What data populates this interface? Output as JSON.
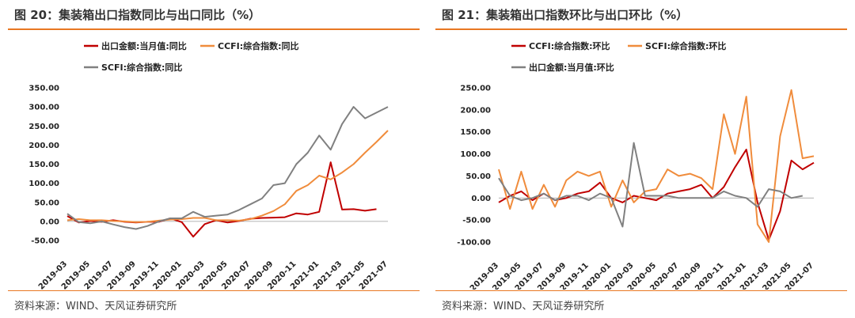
{
  "left": {
    "title": "图 20：集装箱出口指数同比与出口同比（%）",
    "source": "资料来源：WIND、天风证券研究所"
  },
  "right": {
    "title": "图 21：集装箱出口指数环比与出口环比（%）",
    "source": "资料来源：WIND、天风证券研究所"
  },
  "colors": {
    "accent": "#e87722",
    "red": "#c00000",
    "orange": "#f08c3c",
    "gray": "#808080"
  },
  "chart_data": [
    {
      "type": "line",
      "title": "集装箱出口指数同比与出口同比（%）",
      "x_ticks": [
        "2019-03",
        "2019-05",
        "2019-07",
        "2019-09",
        "2019-11",
        "2020-01",
        "2020-03",
        "2020-05",
        "2020-07",
        "2020-09",
        "2020-11",
        "2021-01",
        "2021-03",
        "2021-05",
        "2021-07"
      ],
      "x_range": [
        "2019-03",
        "2021-07"
      ],
      "y_ticks": [
        "350.00",
        "300.00",
        "250.00",
        "200.00",
        "150.00",
        "100.00",
        "50.00",
        "0.00",
        "-50.00"
      ],
      "ylim": [
        -50,
        350
      ],
      "grid": false,
      "legend_position": "top",
      "series": [
        {
          "name": "出口金额:当月值:同比",
          "color": "#c00000",
          "x": [
            "2019-03",
            "2019-04",
            "2019-05",
            "2019-06",
            "2019-07",
            "2019-08",
            "2019-09",
            "2019-10",
            "2019-11",
            "2019-12",
            "2020-01",
            "2020-02",
            "2020-03",
            "2020-04",
            "2020-05",
            "2020-06",
            "2020-07",
            "2020-08",
            "2020-09",
            "2020-10",
            "2020-11",
            "2020-12",
            "2021-01",
            "2021-02",
            "2021-03",
            "2021-04",
            "2021-05",
            "2021-06"
          ],
          "values": [
            14,
            -3,
            1,
            -1,
            3,
            -1,
            -3,
            -1,
            -1,
            8,
            -2,
            -40,
            -7,
            3,
            -3,
            1,
            7,
            9,
            10,
            11,
            21,
            18,
            25,
            155,
            31,
            32,
            28,
            32
          ]
        },
        {
          "name": "CCFI:综合指数:同比",
          "color": "#f08c3c",
          "x": [
            "2019-03",
            "2019-04",
            "2019-05",
            "2019-06",
            "2019-07",
            "2019-08",
            "2019-09",
            "2019-10",
            "2019-11",
            "2019-12",
            "2020-01",
            "2020-02",
            "2020-03",
            "2020-04",
            "2020-05",
            "2020-06",
            "2020-07",
            "2020-08",
            "2020-09",
            "2020-10",
            "2020-11",
            "2020-12",
            "2021-01",
            "2021-02",
            "2021-03",
            "2021-04",
            "2021-05",
            "2021-06",
            "2021-07"
          ],
          "values": [
            3,
            6,
            3,
            3,
            1,
            0,
            -2,
            -1,
            2,
            5,
            6,
            9,
            9,
            3,
            3,
            2,
            6,
            15,
            27,
            45,
            80,
            95,
            120,
            110,
            128,
            150,
            180,
            208,
            238
          ]
        },
        {
          "name": "SCFI:综合指数:同比",
          "color": "#808080",
          "x": [
            "2019-03",
            "2019-04",
            "2019-05",
            "2019-06",
            "2019-07",
            "2019-08",
            "2019-09",
            "2019-10",
            "2019-11",
            "2019-12",
            "2020-01",
            "2020-02",
            "2020-03",
            "2020-04",
            "2020-05",
            "2020-06",
            "2020-07",
            "2020-08",
            "2020-09",
            "2020-10",
            "2020-11",
            "2020-12",
            "2021-01",
            "2021-02",
            "2021-03",
            "2021-04",
            "2021-05",
            "2021-06",
            "2021-07"
          ],
          "values": [
            20,
            -2,
            -5,
            0,
            -8,
            -15,
            -20,
            -12,
            0,
            8,
            8,
            25,
            12,
            15,
            18,
            30,
            45,
            60,
            95,
            100,
            150,
            180,
            225,
            188,
            255,
            300,
            270,
            285,
            300
          ]
        }
      ]
    },
    {
      "type": "line",
      "title": "集装箱出口指数环比与出口环比（%）",
      "x_ticks": [
        "2019-03",
        "2019-05",
        "2019-07",
        "2019-09",
        "2019-11",
        "2020-01",
        "2020-03",
        "2020-05",
        "2020-07",
        "2020-09",
        "2020-11",
        "2021-01",
        "2021-03",
        "2021-05",
        "2021-07"
      ],
      "x_range": [
        "2019-03",
        "2021-07"
      ],
      "y_ticks": [
        "250.00",
        "200.00",
        "150.00",
        "100.00",
        "50.00",
        "0.00",
        "-50.00",
        "-100.00"
      ],
      "ylim": [
        -100,
        250
      ],
      "grid": false,
      "legend_position": "top",
      "series": [
        {
          "name": "CCFI:综合指数:环比",
          "color": "#c00000",
          "x": [
            "2019-03",
            "2019-04",
            "2019-05",
            "2019-06",
            "2019-07",
            "2019-08",
            "2019-09",
            "2019-10",
            "2019-11",
            "2019-12",
            "2020-01",
            "2020-02",
            "2020-03",
            "2020-04",
            "2020-05",
            "2020-06",
            "2020-07",
            "2020-08",
            "2020-09",
            "2020-10",
            "2020-11",
            "2020-12",
            "2021-01",
            "2021-02",
            "2021-03",
            "2021-04",
            "2021-05",
            "2021-06",
            "2021-07"
          ],
          "values": [
            -10,
            5,
            15,
            -5,
            10,
            -5,
            0,
            10,
            15,
            35,
            0,
            -10,
            5,
            0,
            -5,
            10,
            15,
            20,
            30,
            0,
            25,
            70,
            110,
            -10,
            -95,
            -30,
            85,
            65,
            80
          ]
        },
        {
          "name": "SCFI:综合指数:环比",
          "color": "#f08c3c",
          "x": [
            "2019-03",
            "2019-04",
            "2019-05",
            "2019-06",
            "2019-07",
            "2019-08",
            "2019-09",
            "2019-10",
            "2019-11",
            "2019-12",
            "2020-01",
            "2020-02",
            "2020-03",
            "2020-04",
            "2020-05",
            "2020-06",
            "2020-07",
            "2020-08",
            "2020-09",
            "2020-10",
            "2020-11",
            "2020-12",
            "2021-01",
            "2021-02",
            "2021-03",
            "2021-04",
            "2021-05",
            "2021-06",
            "2021-07"
          ],
          "values": [
            65,
            -25,
            60,
            -25,
            30,
            -20,
            40,
            60,
            50,
            60,
            -20,
            40,
            -10,
            15,
            20,
            65,
            50,
            55,
            45,
            20,
            190,
            100,
            230,
            -60,
            -100,
            140,
            245,
            90,
            95
          ]
        },
        {
          "name": "出口金额:当月值:环比",
          "color": "#808080",
          "x": [
            "2019-03",
            "2019-04",
            "2019-05",
            "2019-06",
            "2019-07",
            "2019-08",
            "2019-09",
            "2019-10",
            "2019-11",
            "2019-12",
            "2020-01",
            "2020-02",
            "2020-03",
            "2020-04",
            "2020-05",
            "2020-06",
            "2020-07",
            "2020-08",
            "2020-09",
            "2020-10",
            "2020-11",
            "2020-12",
            "2021-01",
            "2021-02",
            "2021-03",
            "2021-04",
            "2021-05",
            "2021-06"
          ],
          "values": [
            45,
            5,
            -5,
            0,
            10,
            -5,
            5,
            5,
            -5,
            10,
            0,
            -65,
            125,
            5,
            5,
            5,
            0,
            0,
            0,
            0,
            15,
            5,
            0,
            -20,
            20,
            15,
            0,
            5
          ]
        }
      ]
    }
  ]
}
